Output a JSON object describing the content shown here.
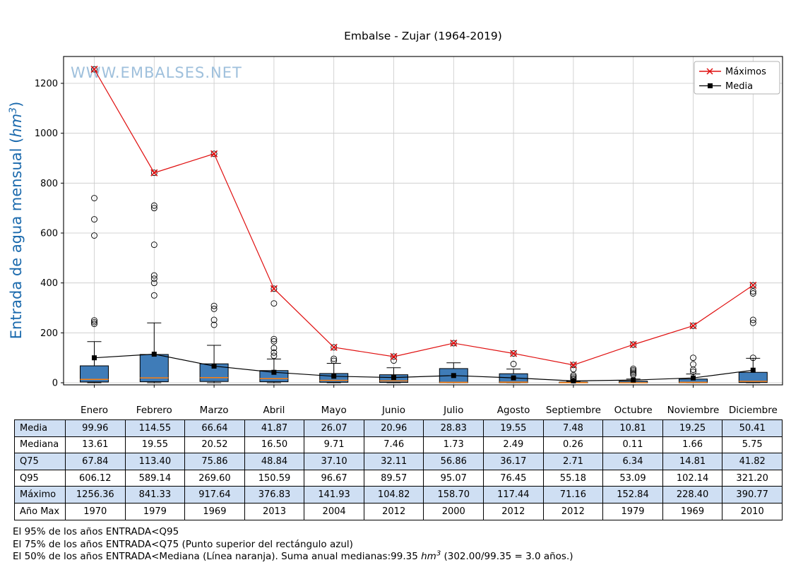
{
  "title": "Embalse - Zujar (1964-2019)",
  "watermark": "WWW.EMBALSES.NET",
  "legend": {
    "maximos": "Máximos",
    "media": "Media"
  },
  "axes": {
    "y_label_pre": "Entrada de agua mensual (",
    "y_label_math": "hm",
    "y_label_sup": "3",
    "y_label_post": ")",
    "y_ticks": [
      0,
      200,
      400,
      600,
      800,
      1000,
      1200
    ]
  },
  "colors": {
    "box_fill": "#3f7cb8",
    "box_edge": "#000000",
    "median": "#ff7f0e",
    "max_line": "#e01010",
    "media_line": "#000000",
    "grid": "#c9c9c9",
    "watermark": "#9fc0dc",
    "y_label": "#1b6aad",
    "table_highlight": "#cfdff3",
    "legend_border": "#b0b0b0"
  },
  "chart_data": {
    "type": "boxplot",
    "title": "Embalse - Zujar (1964-2019)",
    "ylabel": "Entrada de agua mensual (hm³)",
    "xlabel": "",
    "ylim": [
      -10,
      1307
    ],
    "grid": true,
    "legend_position": "upper right",
    "categories": [
      "Enero",
      "Febrero",
      "Marzo",
      "Abril",
      "Mayo",
      "Junio",
      "Julio",
      "Agosto",
      "Septiembre",
      "Octubre",
      "Noviembre",
      "Diciembre"
    ],
    "series": [
      {
        "name": "Máximos",
        "marker": "x",
        "color_key": "max_line",
        "values": [
          1256.36,
          841.33,
          917.64,
          376.83,
          141.93,
          104.82,
          158.7,
          117.44,
          71.16,
          152.84,
          228.4,
          390.77
        ]
      },
      {
        "name": "Media",
        "marker": "square",
        "color_key": "media_line",
        "values": [
          99.96,
          114.55,
          66.64,
          41.87,
          26.07,
          20.96,
          28.83,
          19.55,
          7.48,
          10.81,
          19.25,
          50.41
        ]
      }
    ],
    "year_of_max": [
      1970,
      1979,
      1969,
      2013,
      2004,
      2012,
      2000,
      2012,
      2012,
      1979,
      1969,
      2010
    ],
    "boxplot": {
      "median": [
        13.61,
        19.55,
        20.52,
        16.5,
        9.71,
        7.46,
        1.73,
        2.49,
        0.26,
        0.11,
        1.66,
        5.75
      ],
      "q75": [
        67.84,
        113.4,
        75.86,
        48.84,
        37.1,
        32.11,
        56.86,
        36.17,
        2.71,
        6.34,
        14.81,
        41.82
      ],
      "q95": [
        606.12,
        589.14,
        269.6,
        150.59,
        96.67,
        89.57,
        95.07,
        76.45,
        55.18,
        53.09,
        102.14,
        321.2
      ],
      "q25_est": [
        3,
        4,
        5,
        4,
        2,
        1.5,
        0.3,
        0.5,
        0.05,
        0.02,
        0.3,
        1
      ],
      "whisker_low_est": [
        0,
        0,
        0,
        0,
        0,
        0,
        0,
        0,
        0,
        0,
        0,
        0
      ],
      "whisker_high_est": [
        165,
        240,
        150,
        95,
        78,
        60,
        80,
        55,
        6,
        15,
        35,
        98
      ],
      "outliers_est": [
        [
          1256.36,
          740,
          655,
          590,
          250,
          243,
          236
        ],
        [
          841.33,
          710,
          700,
          553,
          430,
          417,
          400,
          350
        ],
        [
          917.64,
          308,
          296,
          252,
          232
        ],
        [
          376.83,
          318,
          175,
          166,
          139,
          121,
          108
        ],
        [
          141.93,
          96,
          88
        ],
        [
          104.82,
          89
        ],
        [
          158.7
        ],
        [
          117.44,
          75
        ],
        [
          71.16,
          54,
          30,
          24,
          18,
          13
        ],
        [
          152.84,
          56,
          50,
          44,
          38,
          32
        ],
        [
          228.4,
          100,
          74,
          52,
          44
        ],
        [
          390.77,
          366,
          358,
          252,
          240,
          100
        ]
      ]
    }
  },
  "table": {
    "row_labels": [
      "Media",
      "Mediana",
      "Q75",
      "Q95",
      "Máximo",
      "Año Max"
    ],
    "columns": [
      "Enero",
      "Febrero",
      "Marzo",
      "Abril",
      "Mayo",
      "Junio",
      "Julio",
      "Agosto",
      "Septiembre",
      "Octubre",
      "Noviembre",
      "Diciembre"
    ],
    "rows": [
      [
        "99.96",
        "114.55",
        "66.64",
        "41.87",
        "26.07",
        "20.96",
        "28.83",
        "19.55",
        "7.48",
        "10.81",
        "19.25",
        "50.41"
      ],
      [
        "13.61",
        "19.55",
        "20.52",
        "16.50",
        "9.71",
        "7.46",
        "1.73",
        "2.49",
        "0.26",
        "0.11",
        "1.66",
        "5.75"
      ],
      [
        "67.84",
        "113.40",
        "75.86",
        "48.84",
        "37.10",
        "32.11",
        "56.86",
        "36.17",
        "2.71",
        "6.34",
        "14.81",
        "41.82"
      ],
      [
        "606.12",
        "589.14",
        "269.60",
        "150.59",
        "96.67",
        "89.57",
        "95.07",
        "76.45",
        "55.18",
        "53.09",
        "102.14",
        "321.20"
      ],
      [
        "1256.36",
        "841.33",
        "917.64",
        "376.83",
        "141.93",
        "104.82",
        "158.70",
        "117.44",
        "71.16",
        "152.84",
        "228.40",
        "390.77"
      ],
      [
        "1970",
        "1979",
        "1969",
        "2013",
        "2004",
        "2012",
        "2000",
        "2012",
        "2012",
        "1979",
        "1969",
        "2010"
      ]
    ]
  },
  "notes": {
    "line1": "El 95% de los años ENTRADA<Q95",
    "line2": "El 75% de los años ENTRADA<Q75 (Punto superior del rectángulo azul)",
    "line3_pre": "El 50% de los años ENTRADA<Mediana (Línea naranja). Suma anual medianas:99.35 ",
    "line3_math": "hm",
    "line3_sup": "3",
    "line3_post": " (302.00/99.35 = 3.0 años.)"
  }
}
